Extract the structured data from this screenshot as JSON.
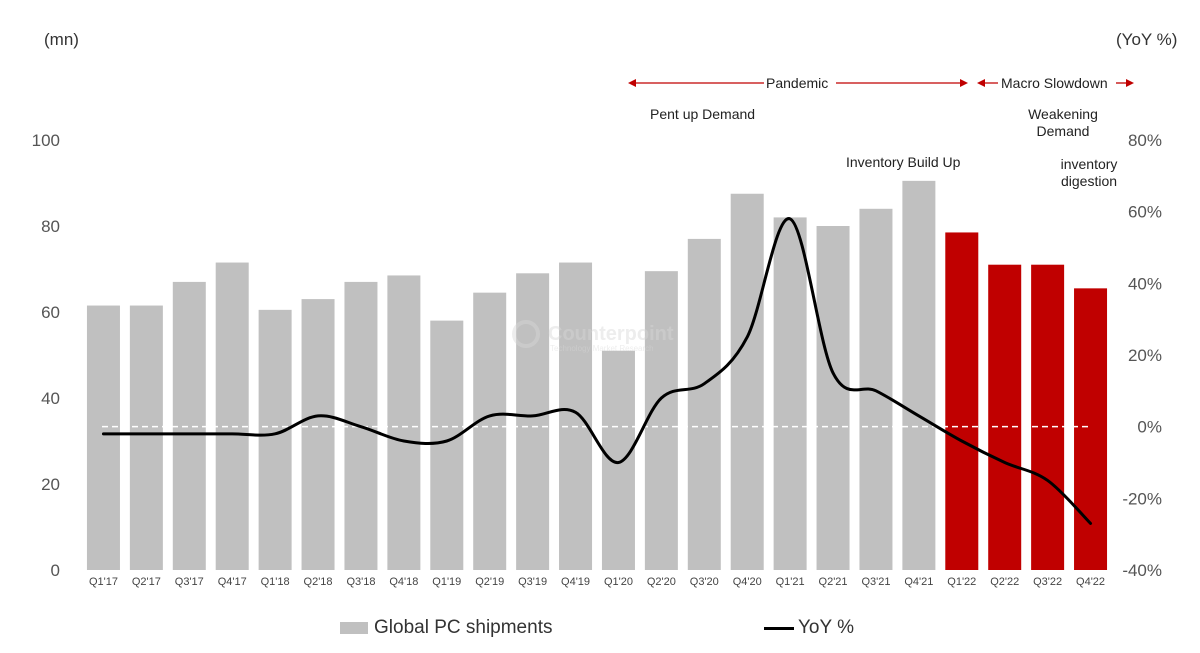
{
  "chart_data": {
    "type": "bar",
    "categories": [
      "Q1'17",
      "Q2'17",
      "Q3'17",
      "Q4'17",
      "Q1'18",
      "Q2'18",
      "Q3'18",
      "Q4'18",
      "Q1'19",
      "Q2'19",
      "Q3'19",
      "Q4'19",
      "Q1'20",
      "Q2'20",
      "Q3'20",
      "Q4'20",
      "Q1'21",
      "Q2'21",
      "Q3'21",
      "Q4'21",
      "Q1'22",
      "Q2'22",
      "Q3'22",
      "Q4'22"
    ],
    "series": [
      {
        "name": "Global PC shipments",
        "type": "bar",
        "axis": "left",
        "values": [
          61.5,
          61.5,
          67,
          71.5,
          60.5,
          63,
          67,
          68.5,
          58,
          64.5,
          69,
          71.5,
          51,
          69.5,
          77,
          87.5,
          82,
          80,
          84,
          90.5,
          78.5,
          71,
          71,
          65.5
        ],
        "highlight_from_index": 20,
        "color": "#c0c0c0",
        "highlight_color": "#c00000"
      },
      {
        "name": "YoY %",
        "type": "line",
        "axis": "right",
        "values": [
          -2,
          -2,
          -2,
          -2,
          -2,
          3,
          0,
          -4,
          -4,
          3,
          3,
          4,
          -10,
          8,
          12,
          25,
          58,
          15,
          10,
          3,
          -4,
          -10,
          -15,
          -27
        ],
        "color": "#000000"
      }
    ],
    "yleft": {
      "ticks": [
        0,
        20,
        40,
        60,
        80,
        100
      ],
      "ylim": [
        0,
        100
      ],
      "unit": "(mn)"
    },
    "yright": {
      "ticks": [
        "-40%",
        "-20%",
        "0%",
        "20%",
        "40%",
        "60%",
        "80%"
      ],
      "ylim": [
        -40,
        80
      ],
      "unit": "(YoY %)"
    },
    "zero_line": "dashed",
    "grid": false,
    "legend": "bottom"
  },
  "annotations": {
    "pandemic": "Pandemic",
    "macro": "Macro Slowdown",
    "pent_up": "Pent up Demand",
    "inventory_build": "Inventory Build Up",
    "weakening": [
      "Weakening",
      "Demand"
    ],
    "digestion": [
      "inventory",
      "digestion"
    ]
  },
  "legend": {
    "bar_label": "Global PC shipments",
    "line_label": "YoY %"
  },
  "watermark": {
    "title": "Counterpoint",
    "subtitle": "Technology Market Research"
  }
}
